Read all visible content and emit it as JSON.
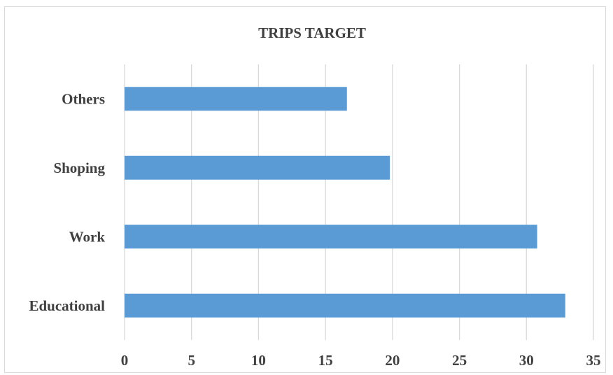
{
  "chart_data": {
    "type": "bar",
    "orientation": "horizontal",
    "title": "TRIPS TARGET",
    "categories": [
      "Educational",
      "Work",
      "Shoping",
      "Others"
    ],
    "values": [
      32.9,
      30.8,
      19.8,
      16.6
    ],
    "x_ticks": [
      "0",
      "5",
      "10",
      "15",
      "20",
      "25",
      "30",
      "35"
    ],
    "xlim": [
      0,
      35
    ],
    "grid": "vertical",
    "legend": "none",
    "bar_color": "#5b9bd5"
  }
}
